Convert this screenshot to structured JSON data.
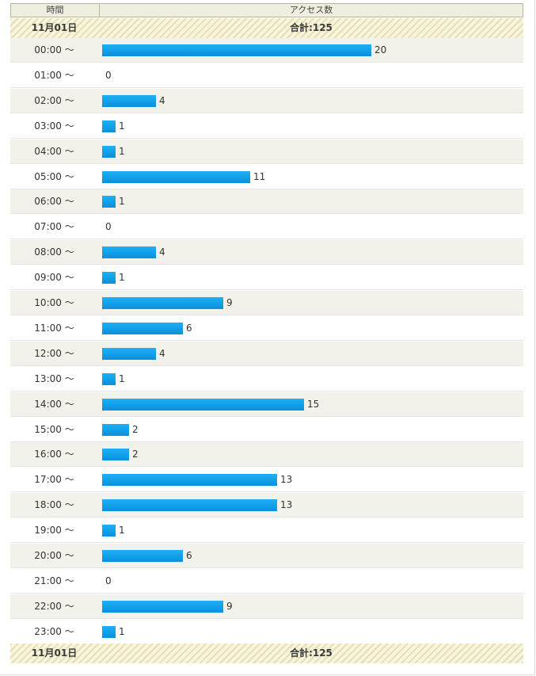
{
  "header": {
    "col_time": "時間",
    "col_access": "アクセス数"
  },
  "summary": {
    "date": "11月01日",
    "total": "合計:125"
  },
  "chart_data": {
    "type": "bar",
    "orientation": "horizontal",
    "categories": [
      "00:00 ～",
      "01:00 ～",
      "02:00 ～",
      "03:00 ～",
      "04:00 ～",
      "05:00 ～",
      "06:00 ～",
      "07:00 ～",
      "08:00 ～",
      "09:00 ～",
      "10:00 ～",
      "11:00 ～",
      "12:00 ～",
      "13:00 ～",
      "14:00 ～",
      "15:00 ～",
      "16:00 ～",
      "17:00 ～",
      "18:00 ～",
      "19:00 ～",
      "20:00 ～",
      "21:00 ～",
      "22:00 ～",
      "23:00 ～"
    ],
    "values": [
      20,
      0,
      4,
      1,
      1,
      11,
      1,
      0,
      4,
      1,
      9,
      6,
      4,
      1,
      15,
      2,
      2,
      13,
      13,
      1,
      6,
      0,
      9,
      1
    ],
    "colors": {
      "bar": "#0aa0e8",
      "row_alt": "#f3f2ea",
      "header_bg": "#f0eedf"
    }
  }
}
